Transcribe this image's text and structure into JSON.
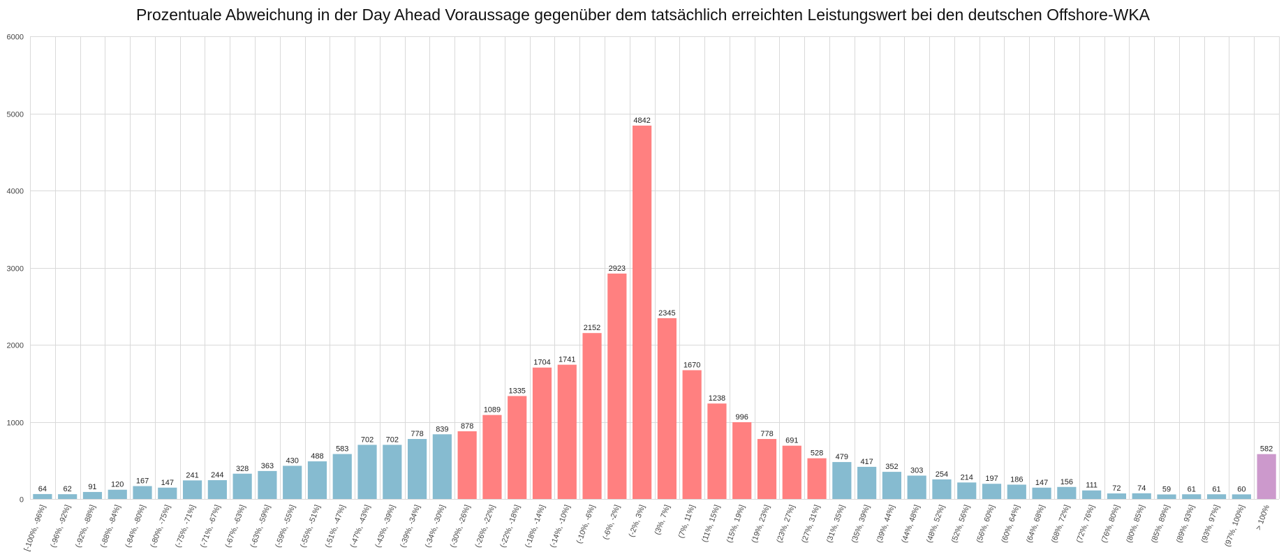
{
  "chart_data": {
    "type": "bar",
    "title": "Prozentuale Abweichung in der Day Ahead Voraussage gegenüber dem tatsächlich erreichten Leistungswert bei den deutschen Offshore-WKA",
    "xlabel": "",
    "ylabel": "",
    "ylim": [
      0,
      6000
    ],
    "yticks": [
      0,
      1000,
      2000,
      3000,
      4000,
      5000,
      6000
    ],
    "grid": true,
    "legend": "none",
    "colors": {
      "low": "#86bbd0",
      "mid": "#ff8080",
      "top": "#cc99cc",
      "grid": "#d9d9d9"
    },
    "categories": [
      "[-100%, -96%]",
      "(-96%, -92%]",
      "(-92%, -88%]",
      "(-88%, -84%]",
      "(-84%, -80%]",
      "(-80%, -75%]",
      "(-75%, -71%]",
      "(-71%, -67%]",
      "(-67%, -63%]",
      "(-63%, -59%]",
      "(-59%, -55%]",
      "(-55%, -51%]",
      "(-51%, -47%]",
      "(-47%, -43%]",
      "(-43%, -39%]",
      "(-39%, -34%]",
      "(-34%, -30%]",
      "(-30%, -26%]",
      "(-26%, -22%]",
      "(-22%, -18%]",
      "(-18%, -14%]",
      "(-14%, -10%]",
      "(-10%, -6%]",
      "(-6%, -2%]",
      "(-2%, 3%]",
      "(3%, 7%]",
      "(7%, 11%]",
      "(11%, 15%]",
      "(15%, 19%]",
      "(19%, 23%]",
      "(23%, 27%]",
      "(27%, 31%]",
      "(31%, 35%]",
      "(35%, 39%]",
      "(39%, 44%]",
      "(44%, 48%]",
      "(48%, 52%]",
      "(52%, 56%]",
      "(56%, 60%]",
      "(60%, 64%]",
      "(64%, 68%]",
      "(68%, 72%]",
      "(72%, 76%]",
      "(76%, 80%]",
      "(80%, 85%]",
      "(85%, 89%]",
      "(89%, 93%]",
      "(93%, 97%]",
      "(97%, 100%]",
      "> 100%"
    ],
    "values": [
      64,
      62,
      91,
      120,
      167,
      147,
      241,
      244,
      328,
      363,
      430,
      488,
      583,
      702,
      702,
      778,
      839,
      878,
      1089,
      1335,
      1704,
      1741,
      2152,
      2923,
      4842,
      2345,
      1670,
      1238,
      996,
      778,
      691,
      528,
      479,
      417,
      352,
      303,
      254,
      214,
      197,
      186,
      147,
      156,
      111,
      72,
      74,
      59,
      61,
      61,
      60,
      582
    ],
    "bar_colors": [
      "low",
      "low",
      "low",
      "low",
      "low",
      "low",
      "low",
      "low",
      "low",
      "low",
      "low",
      "low",
      "low",
      "low",
      "low",
      "low",
      "low",
      "mid",
      "mid",
      "mid",
      "mid",
      "mid",
      "mid",
      "mid",
      "mid",
      "mid",
      "mid",
      "mid",
      "mid",
      "mid",
      "mid",
      "mid",
      "low",
      "low",
      "low",
      "low",
      "low",
      "low",
      "low",
      "low",
      "low",
      "low",
      "low",
      "low",
      "low",
      "low",
      "low",
      "low",
      "low",
      "top"
    ]
  }
}
